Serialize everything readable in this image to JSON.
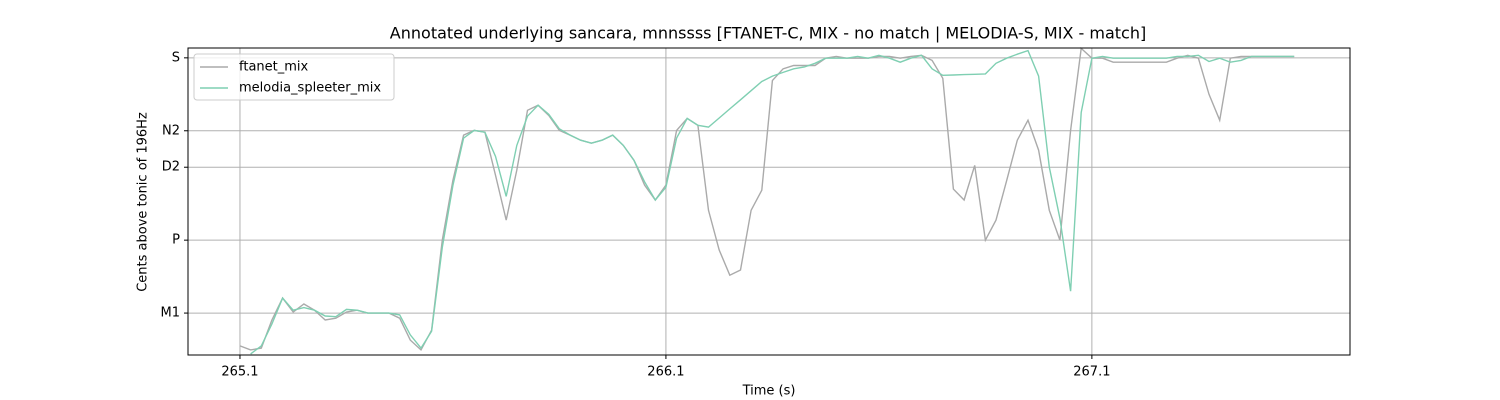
{
  "chart_data": {
    "type": "line",
    "title": "Annotated underlying sancara, mnnssss [FTANET-C, MIX - no match | MELODIA-S, MIX - match]",
    "x_label": "Time (s)",
    "y_label": "Cents above tonic of 196Hz",
    "xlim": [
      264.978,
      267.706
    ],
    "ylim": [
      385,
      1227
    ],
    "xticks": [
      265.1,
      266.1,
      267.1
    ],
    "yticks": [
      {
        "value": 500,
        "label": "M1"
      },
      {
        "value": 700,
        "label": "P"
      },
      {
        "value": 900,
        "label": "D2"
      },
      {
        "value": 1000,
        "label": "N2"
      },
      {
        "value": 1200,
        "label": "S"
      }
    ],
    "grid": true,
    "legend": "upper left",
    "x": [
      265.1,
      265.125,
      265.15,
      265.175,
      265.2,
      265.225,
      265.25,
      265.275,
      265.3,
      265.325,
      265.35,
      265.375,
      265.4,
      265.425,
      265.45,
      265.475,
      265.5,
      265.525,
      265.55,
      265.575,
      265.6,
      265.625,
      265.65,
      265.675,
      265.7,
      265.725,
      265.75,
      265.775,
      265.8,
      265.825,
      265.85,
      265.875,
      265.9,
      265.925,
      265.95,
      265.975,
      266.0,
      266.025,
      266.05,
      266.075,
      266.1,
      266.125,
      266.15,
      266.175,
      266.2,
      266.225,
      266.25,
      266.275,
      266.3,
      266.325,
      266.35,
      266.375,
      266.4,
      266.425,
      266.45,
      266.475,
      266.5,
      266.525,
      266.55,
      266.575,
      266.6,
      266.625,
      266.65,
      266.675,
      266.7,
      266.725,
      266.75,
      266.775,
      266.8,
      266.825,
      266.85,
      266.875,
      266.9,
      266.925,
      266.95,
      266.975,
      267.0,
      267.025,
      267.05,
      267.075,
      267.1,
      267.125,
      267.15,
      267.175,
      267.2,
      267.225,
      267.25,
      267.275,
      267.3,
      267.325,
      267.35,
      267.375,
      267.4,
      267.425,
      267.45,
      267.475,
      267.5,
      267.525,
      267.55,
      267.575
    ],
    "series": [
      {
        "name": "ftanet_mix",
        "color": "#aaaaaa",
        "values": [
          410,
          399,
          404,
          481,
          541,
          503,
          525,
          508,
          481,
          486,
          503,
          508,
          500,
          500,
          500,
          486,
          426,
          399,
          453,
          700,
          864,
          988,
          1001,
          996,
          878,
          755,
          892,
          1056,
          1070,
          1042,
          1001,
          988,
          974,
          966,
          974,
          988,
          960,
          919,
          851,
          810,
          851,
          1001,
          1034,
          1015,
          782,
          673,
          604,
          618,
          782,
          837,
          1138,
          1170,
          1179,
          1179,
          1179,
          1199,
          1204,
          1199,
          1199,
          1199,
          1204,
          1204,
          1199,
          1204,
          1207,
          1193,
          1144,
          840,
          810,
          905,
          700,
          755,
          864,
          974,
          1029,
          947,
          782,
          700,
          1001,
          1226,
          1199,
          1199,
          1188,
          1188,
          1188,
          1188,
          1188,
          1188,
          1199,
          1207,
          1199,
          1100,
          1029,
          1199,
          1204,
          1204,
          1204,
          1204,
          1204,
          1204
        ]
      },
      {
        "name": "melodia_spleeter_mix",
        "color": "#7fcfb2",
        "values": [
          null,
          388,
          410,
          470,
          541,
          508,
          515,
          508,
          492,
          490,
          510,
          508,
          500,
          500,
          500,
          495,
          440,
          404,
          450,
          680,
          850,
          980,
          1001,
          996,
          930,
          820,
          960,
          1040,
          1070,
          1045,
          1005,
          988,
          974,
          966,
          974,
          988,
          960,
          919,
          860,
          810,
          845,
          980,
          1034,
          1015,
          1010,
          1035,
          1060,
          1085,
          1110,
          1135,
          1150,
          1160,
          1170,
          1175,
          1185,
          1199,
          1199,
          1199,
          1204,
          1199,
          1207,
          1199,
          1188,
          1199,
          1207,
          1170,
          1152,
          1153,
          1154,
          1155,
          1156,
          1185,
          1199,
          1210,
          1220,
          1150,
          900,
          760,
          560,
          1050,
          1199,
          1204,
          1199,
          1199,
          1199,
          1199,
          1199,
          1199,
          1204,
          1204,
          1207,
          1190,
          1199,
          1188,
          1193,
          1204,
          1204,
          1204,
          1204,
          1204
        ]
      }
    ]
  }
}
